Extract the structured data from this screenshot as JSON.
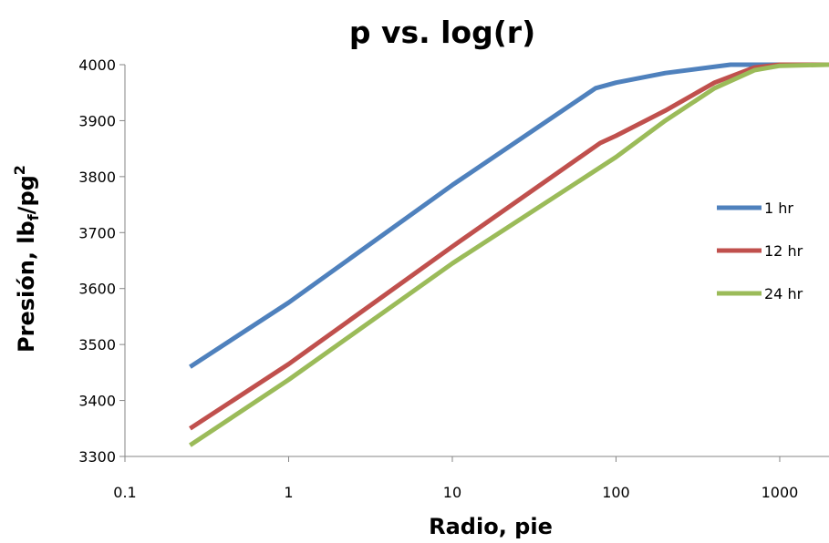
{
  "chart_data": {
    "type": "line",
    "title": "p vs. log(r)",
    "xlabel": "Radio, pie",
    "ylabel_main": "Presión, lb",
    "ylabel_sub": "f",
    "ylabel_mid": "/pg",
    "ylabel_sup": "2",
    "x_scale": "log",
    "xlim": [
      0.1,
      2000
    ],
    "ylim": [
      3300,
      4000
    ],
    "x_ticks": [
      0.1,
      1,
      10,
      100,
      1000
    ],
    "x_tick_labels": [
      "0.1",
      "1",
      "10",
      "100",
      "1000"
    ],
    "y_ticks": [
      3300,
      3400,
      3500,
      3600,
      3700,
      3800,
      3900,
      4000
    ],
    "y_tick_labels": [
      "3300",
      "3400",
      "3500",
      "3600",
      "3700",
      "3800",
      "3900",
      "4000"
    ],
    "grid": false,
    "legend_position": "right",
    "series": [
      {
        "name": "1 hr",
        "color": "#4F81BD",
        "x": [
          0.25,
          1,
          10,
          75,
          100,
          200,
          500,
          1000,
          2000
        ],
        "y": [
          3460,
          3575,
          3785,
          3958,
          3968,
          3985,
          4000,
          4000,
          4000
        ]
      },
      {
        "name": "12 hr",
        "color": "#C0504D",
        "x": [
          0.25,
          1,
          10,
          80,
          100,
          200,
          400,
          700,
          1000,
          2000
        ],
        "y": [
          3350,
          3465,
          3675,
          3860,
          3873,
          3918,
          3968,
          3995,
          4000,
          4000
        ]
      },
      {
        "name": "24 hr",
        "color": "#9BBB59",
        "x": [
          0.25,
          1,
          10,
          100,
          200,
          400,
          700,
          1000,
          2000
        ],
        "y": [
          3320,
          3437,
          3645,
          3835,
          3900,
          3958,
          3990,
          3998,
          4000
        ]
      }
    ]
  }
}
